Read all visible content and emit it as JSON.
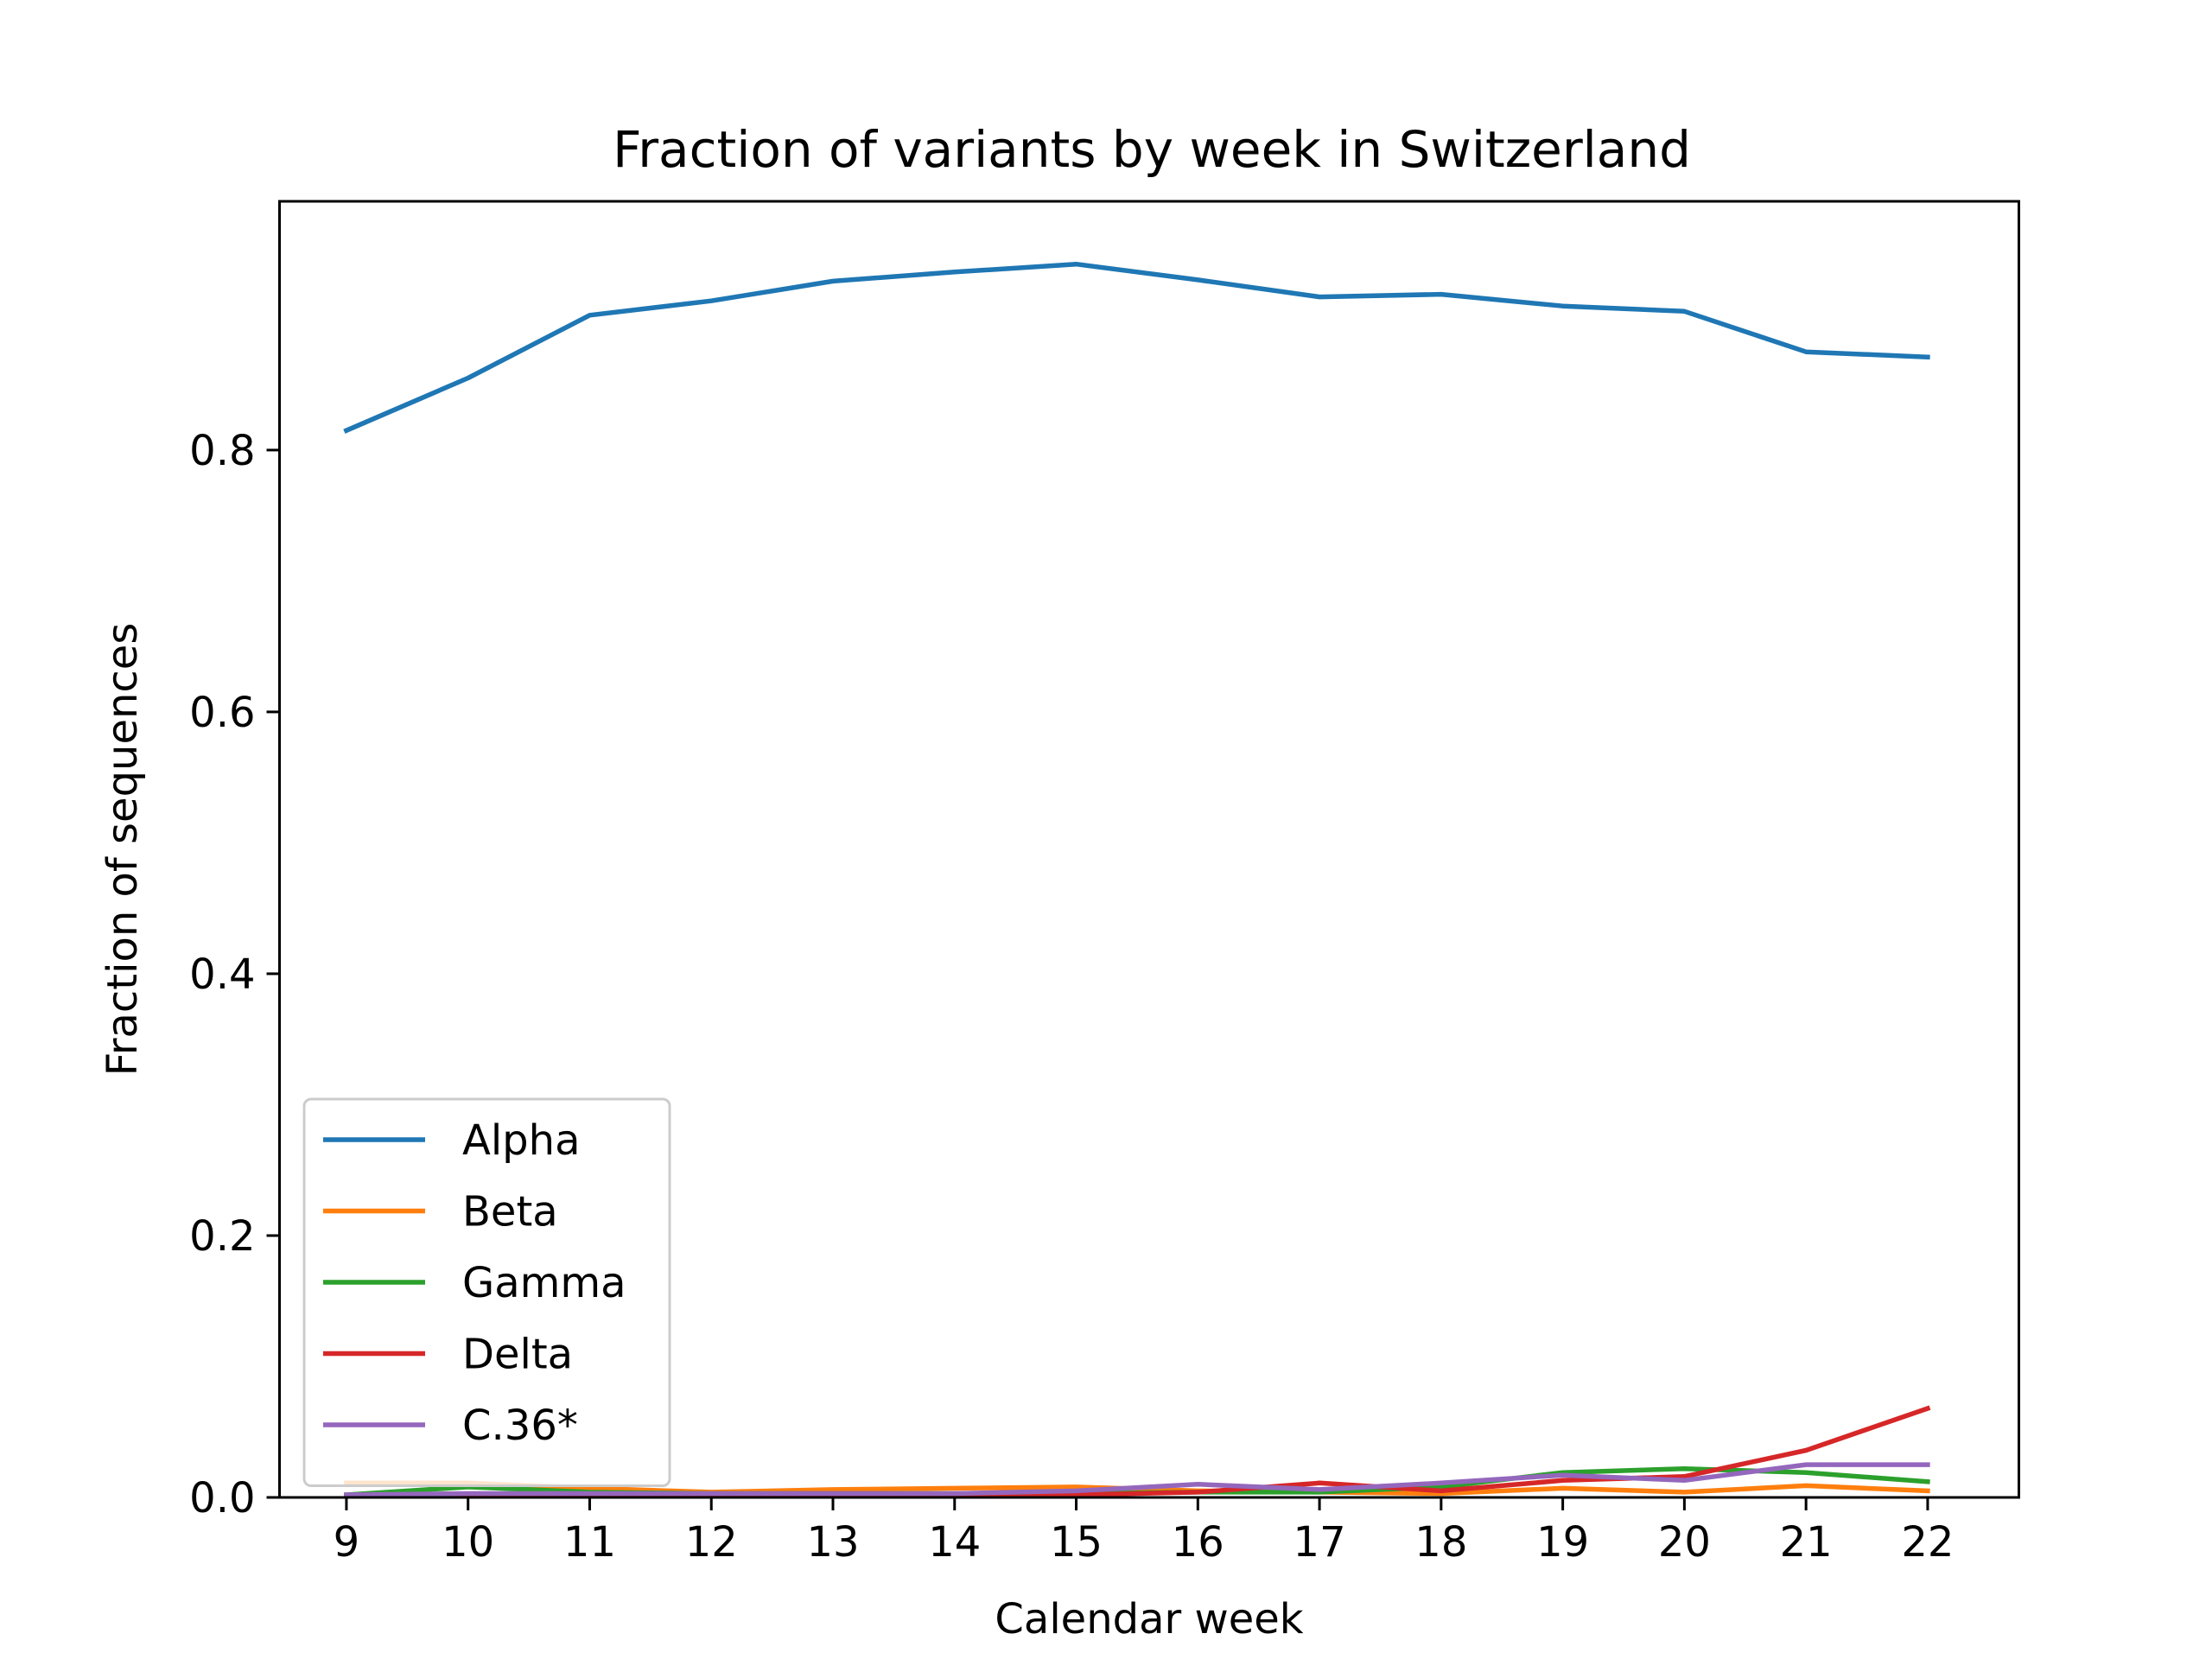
{
  "chart_data": {
    "type": "line",
    "title": "Fraction of variants by week in Switzerland",
    "xlabel": "Calendar week",
    "ylabel": "Fraction of sequences",
    "x": [
      9,
      10,
      11,
      12,
      13,
      14,
      15,
      16,
      17,
      18,
      19,
      20,
      21,
      22
    ],
    "x_ticks": [
      "9",
      "10",
      "11",
      "12",
      "13",
      "14",
      "15",
      "16",
      "17",
      "18",
      "19",
      "20",
      "21",
      "22"
    ],
    "y_ticks": [
      "0.0",
      "0.2",
      "0.4",
      "0.6",
      "0.8"
    ],
    "xlim": [
      8.45,
      22.75
    ],
    "ylim": [
      0,
      0.99
    ],
    "grid": false,
    "legend_position": "lower-left",
    "series": [
      {
        "name": "Alpha",
        "color": "#1f77b4",
        "values": [
          0.815,
          0.855,
          0.903,
          0.914,
          0.929,
          0.936,
          0.942,
          0.93,
          0.917,
          0.919,
          0.91,
          0.906,
          0.875,
          0.871
        ]
      },
      {
        "name": "Beta",
        "color": "#ff7f0e",
        "values": [
          0.011,
          0.011,
          0.007,
          0.004,
          0.006,
          0.007,
          0.008,
          0.005,
          0.004,
          0.003,
          0.007,
          0.004,
          0.009,
          0.005
        ]
      },
      {
        "name": "Gamma",
        "color": "#2ca02c",
        "values": [
          0.002,
          0.008,
          0.004,
          0.003,
          0.003,
          0.003,
          0.003,
          0.004,
          0.004,
          0.008,
          0.019,
          0.022,
          0.019,
          0.012
        ]
      },
      {
        "name": "Delta",
        "color": "#d62728",
        "values": [
          0.001,
          0.001,
          0.001,
          0.001,
          0.001,
          0.001,
          0.002,
          0.004,
          0.011,
          0.005,
          0.013,
          0.016,
          0.036,
          0.068
        ]
      },
      {
        "name": "C.36*",
        "color": "#9467bd",
        "values": [
          0.002,
          0.003,
          0.003,
          0.003,
          0.003,
          0.003,
          0.005,
          0.01,
          0.006,
          0.011,
          0.017,
          0.013,
          0.025,
          0.025
        ]
      }
    ]
  }
}
